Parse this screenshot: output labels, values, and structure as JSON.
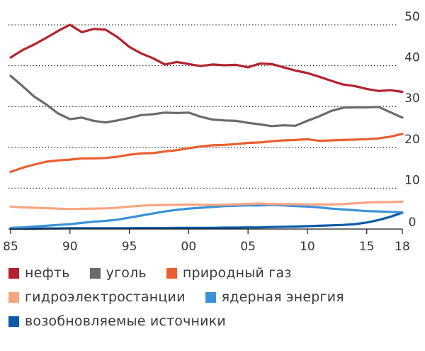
{
  "chart_data": {
    "type": "line",
    "title": "",
    "xlabel": "",
    "ylabel": "",
    "xlim": [
      1985,
      2018
    ],
    "ylim": [
      0,
      50
    ],
    "x_ticks": [
      {
        "value": 1985,
        "label": "85"
      },
      {
        "value": 1990,
        "label": "90"
      },
      {
        "value": 1995,
        "label": "95"
      },
      {
        "value": 2000,
        "label": "00"
      },
      {
        "value": 2005,
        "label": "05"
      },
      {
        "value": 2010,
        "label": "10"
      },
      {
        "value": 2015,
        "label": "15"
      },
      {
        "value": 2018,
        "label": "18"
      }
    ],
    "y_ticks": [
      {
        "value": 50,
        "label": "50"
      },
      {
        "value": 40,
        "label": "40"
      },
      {
        "value": 30,
        "label": "30"
      },
      {
        "value": 20,
        "label": "20"
      },
      {
        "value": 10,
        "label": "10"
      },
      {
        "value": 0,
        "label": "0"
      }
    ],
    "grid": "dotted horizontal",
    "legend_position": "bottom",
    "x": [
      1985,
      1986,
      1987,
      1988,
      1989,
      1990,
      1991,
      1992,
      1993,
      1994,
      1995,
      1996,
      1997,
      1998,
      1999,
      2000,
      2001,
      2002,
      2003,
      2004,
      2005,
      2006,
      2007,
      2008,
      2009,
      2010,
      2011,
      2012,
      2013,
      2014,
      2015,
      2016,
      2017,
      2018
    ],
    "series": [
      {
        "key": "oil",
        "name": "нефть",
        "color": "#b3222e",
        "values": [
          42,
          43.8,
          45.2,
          46.8,
          48.5,
          50,
          48.2,
          49,
          48.8,
          47,
          44.6,
          43,
          41.8,
          40.3,
          40.9,
          40.4,
          39.9,
          40.3,
          40.1,
          40.2,
          39.6,
          40.5,
          40.4,
          39.6,
          38.8,
          38.2,
          37.3,
          36.3,
          35.4,
          35,
          34.3,
          33.8,
          34,
          33.6
        ]
      },
      {
        "key": "coal",
        "name": "уголь",
        "color": "#6b6b6b",
        "values": [
          37.5,
          35,
          32.4,
          30.5,
          28.3,
          26.9,
          27.3,
          26.5,
          26.1,
          26.6,
          27.2,
          27.9,
          28.1,
          28.5,
          28.4,
          28.5,
          27.5,
          26.8,
          26.6,
          26.5,
          26,
          25.6,
          25.2,
          25.4,
          25.3,
          26.5,
          27.6,
          28.9,
          29.7,
          29.8,
          29.8,
          29.9,
          28.6,
          27.3
        ]
      },
      {
        "key": "gas",
        "name": "природный газ",
        "color": "#ea5f30",
        "values": [
          14,
          15,
          15.8,
          16.5,
          16.8,
          17,
          17.3,
          17.3,
          17.4,
          17.7,
          18.2,
          18.5,
          18.6,
          19,
          19.3,
          19.8,
          20.2,
          20.5,
          20.6,
          20.8,
          21.1,
          21.2,
          21.5,
          21.7,
          21.8,
          22,
          21.6,
          21.7,
          21.8,
          21.9,
          22,
          22.2,
          22.6,
          23.3
        ]
      },
      {
        "key": "hydro",
        "name": "гидроэлектростанции",
        "color": "#f7a580",
        "values": [
          5.5,
          5.3,
          5.2,
          5.1,
          5,
          4.9,
          4.95,
          5,
          5.05,
          5.2,
          5.5,
          5.7,
          5.85,
          5.9,
          5.95,
          6,
          5.95,
          5.9,
          5.95,
          6.05,
          6.15,
          6.25,
          6.15,
          6.1,
          6.1,
          6.05,
          6,
          6,
          6.1,
          6.3,
          6.5,
          6.6,
          6.6,
          6.7
        ]
      },
      {
        "key": "nuclear",
        "name": "ядерная энергия",
        "color": "#3a92d8",
        "values": [
          0.3,
          0.4,
          0.6,
          0.8,
          1,
          1.2,
          1.5,
          1.8,
          2,
          2.3,
          2.8,
          3.3,
          3.8,
          4.3,
          4.7,
          5,
          5.2,
          5.4,
          5.6,
          5.7,
          5.8,
          5.8,
          5.9,
          5.8,
          5.6,
          5.5,
          5.3,
          5,
          4.8,
          4.6,
          4.4,
          4.3,
          4.2,
          4.1
        ]
      },
      {
        "key": "renewables",
        "name": "возобновляемые источники",
        "color": "#0a5ba8",
        "values": [
          0.1,
          0.1,
          0.1,
          0.15,
          0.15,
          0.2,
          0.2,
          0.2,
          0.2,
          0.2,
          0.2,
          0.25,
          0.25,
          0.25,
          0.3,
          0.3,
          0.3,
          0.3,
          0.35,
          0.35,
          0.4,
          0.4,
          0.5,
          0.55,
          0.6,
          0.7,
          0.8,
          0.9,
          1,
          1.2,
          1.6,
          2.2,
          3,
          4
        ]
      }
    ]
  },
  "legend": {
    "rows": [
      [
        {
          "key": "oil",
          "label": "нефть",
          "color": "#b3222e"
        },
        {
          "key": "coal",
          "label": "уголь",
          "color": "#6b6b6b"
        },
        {
          "key": "gas",
          "label": "природный газ",
          "color": "#ea5f30"
        }
      ],
      [
        {
          "key": "hydro",
          "label": "гидроэлектростанции",
          "color": "#f7a580"
        },
        {
          "key": "nuclear",
          "label": "ядерная энергия",
          "color": "#3a92d8"
        }
      ],
      [
        {
          "key": "renewables",
          "label": "возобновляемые источники",
          "color": "#0a5ba8"
        }
      ]
    ]
  }
}
